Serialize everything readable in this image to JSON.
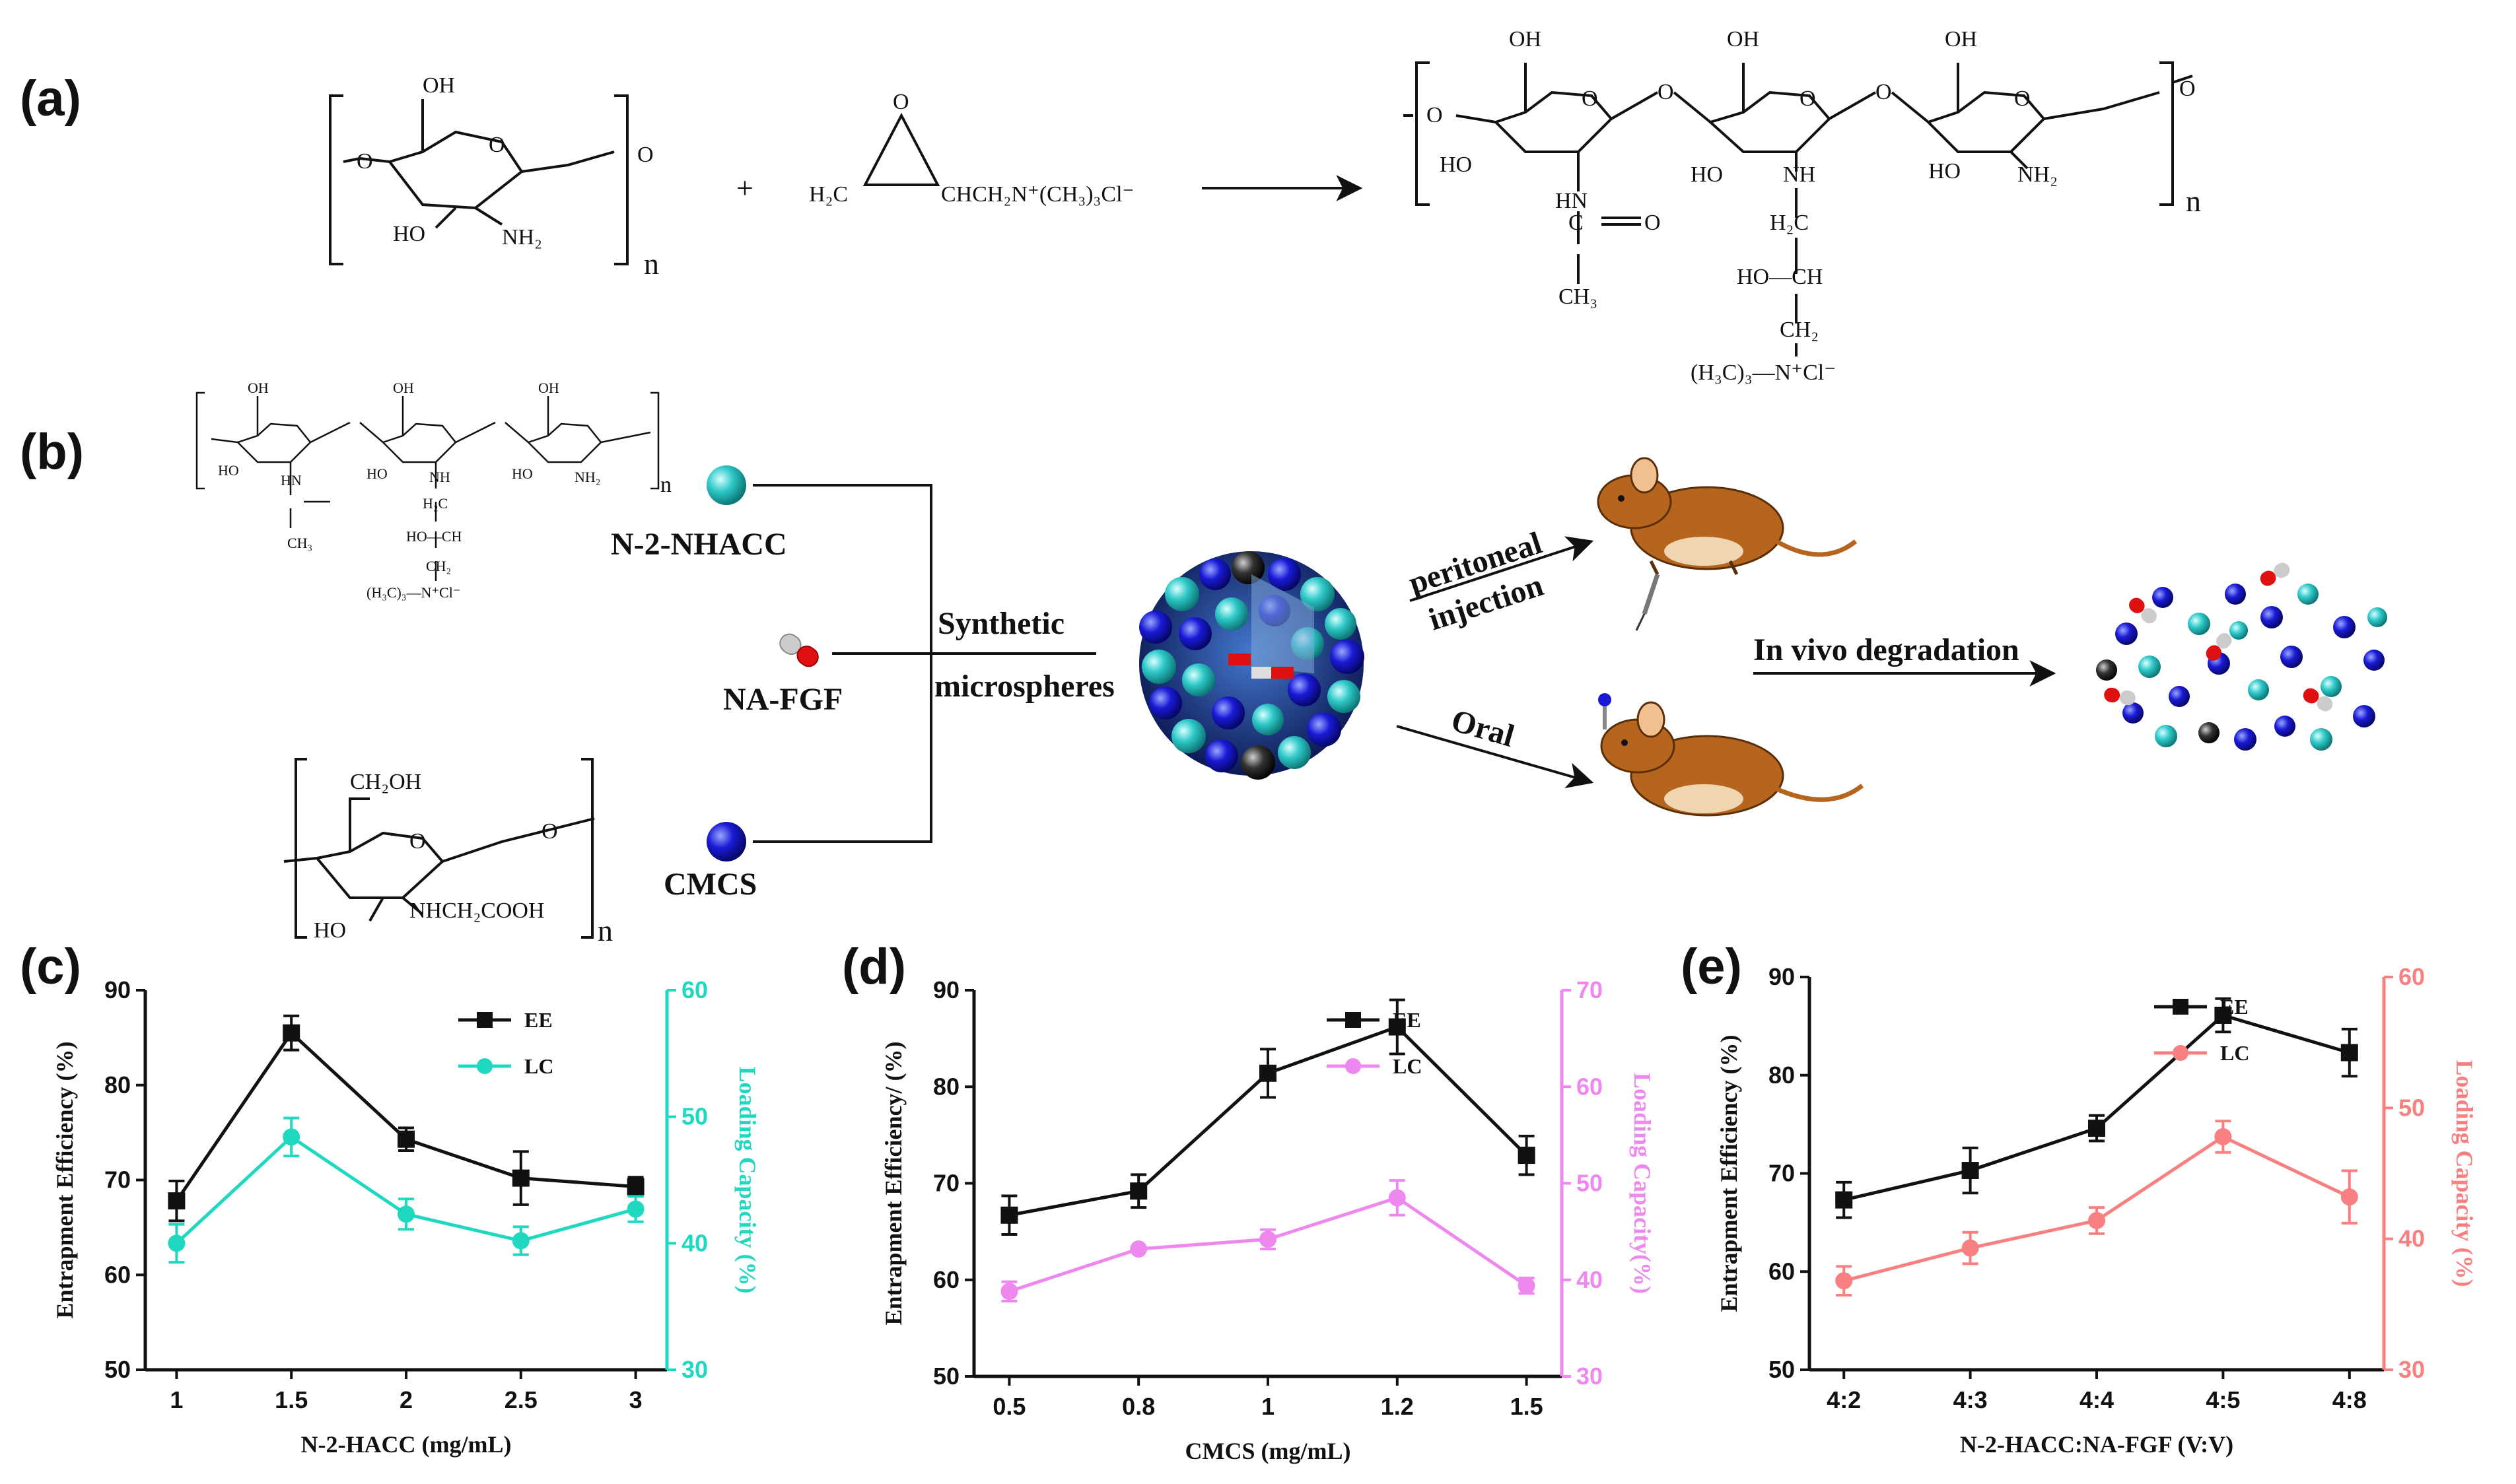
{
  "panels": {
    "a": "(a)",
    "b": "(b)",
    "c": "(c)",
    "d": "(d)",
    "e": "(e)"
  },
  "reaction_a": {
    "plus": "+",
    "reagent_left": "H₂C",
    "reagent_right": "CHCH₂N⁺(CH₃)₃Cl⁻",
    "n": "n",
    "chitosan": {
      "oh": "OH",
      "ho": "HO",
      "nh2": "NH₂",
      "o": "O"
    },
    "product": {
      "oh": "OH",
      "ho": "HO",
      "nh": "HN",
      "nh2": "NH₂",
      "o": "O",
      "nh_mid": "NH",
      "co": "C",
      "eq_o": "O",
      "ch3": "CH₃",
      "h2c": "H₂C",
      "hoch": "HO—CH",
      "ch2": "CH₂",
      "quat": "(H₃C)₃—N⁺Cl⁻"
    }
  },
  "scheme_b": {
    "nhacc_label": "N-2-NHACC",
    "nafgf_label": "NA-FGF",
    "cmcs_label": "CMCS",
    "synthetic": "Synthetic",
    "microspheres": "microspheres",
    "route1_a": "peritoneal",
    "route1_b": "injection",
    "route2": "Oral",
    "degradation": "In vivo degradation",
    "cmcs_struct": {
      "ch2oh": "CH₂OH",
      "ho": "HO",
      "nhch2cooh": "NHCH₂COOH",
      "o": "O",
      "n": "n"
    },
    "colors": {
      "cyan": "#2ec8c8",
      "blue": "#1a1ad6",
      "red": "#e01010",
      "grey": "#c8c8c8",
      "mouse": "#b5651d",
      "dark": "#222222"
    }
  },
  "chart_data": [
    {
      "id": "c",
      "type": "line",
      "x": [
        "1",
        "1.5",
        "2",
        "2.5",
        "3"
      ],
      "xlabel": "N-2-HACC (mg/mL)",
      "ylabel_left": "Entrapment Efficiency (%)",
      "ylabel_right": "Loading Capacity (%)",
      "ylim_left": [
        50,
        90
      ],
      "yticks_left": [
        "50",
        "60",
        "70",
        "80",
        "90"
      ],
      "ylim_right": [
        30,
        60
      ],
      "yticks_right": [
        "30",
        "40",
        "50",
        "60"
      ],
      "right_color": "#1fd8c0",
      "series": [
        {
          "name": "EE",
          "axis": "left",
          "color": "#111111",
          "marker": "square",
          "values": [
            67.8,
            85.5,
            74.3,
            70.2,
            69.3
          ],
          "errors": [
            2.1,
            1.8,
            1.2,
            2.8,
            1.0
          ]
        },
        {
          "name": "LC",
          "axis": "right",
          "color": "#1fd8c0",
          "marker": "circle",
          "values": [
            40.0,
            48.4,
            42.3,
            40.2,
            42.7
          ],
          "errors": [
            1.5,
            1.5,
            1.2,
            1.1,
            1.0
          ]
        }
      ]
    },
    {
      "id": "d",
      "type": "line",
      "x": [
        "0.5",
        "0.8",
        "1",
        "1.2",
        "1.5"
      ],
      "xlabel": "CMCS (mg/mL)",
      "ylabel_left": "Entrapment Efficiency/ (%)",
      "ylabel_right": "Loading Capacity(%)",
      "ylim_left": [
        50,
        90
      ],
      "yticks_left": [
        "50",
        "60",
        "70",
        "80",
        "90"
      ],
      "ylim_right": [
        30,
        70
      ],
      "yticks_right": [
        "30",
        "40",
        "50",
        "60",
        "70"
      ],
      "right_color": "#ee88ee",
      "series": [
        {
          "name": "EE",
          "axis": "left",
          "color": "#111111",
          "marker": "square",
          "values": [
            66.7,
            69.2,
            81.4,
            86.2,
            72.9
          ],
          "errors": [
            2.0,
            1.7,
            2.5,
            2.8,
            2.0
          ]
        },
        {
          "name": "LC",
          "axis": "right",
          "color": "#ee88ee",
          "marker": "circle",
          "values": [
            38.8,
            43.2,
            44.2,
            48.5,
            39.4
          ],
          "errors": [
            1.0,
            0.0,
            1.0,
            1.8,
            0.8
          ]
        }
      ]
    },
    {
      "id": "e",
      "type": "line",
      "x": [
        "4:2",
        "4:3",
        "4:4",
        "4:5",
        "4:8"
      ],
      "xlabel": "N-2-HACC:NA-FGF (V:V)",
      "ylabel_left": "Entrapment Efficiency (%)",
      "ylabel_right": "Loading Capacity (%)",
      "ylim_left": [
        50,
        90
      ],
      "yticks_left": [
        "50",
        "60",
        "70",
        "80",
        "90"
      ],
      "ylim_right": [
        30,
        60
      ],
      "yticks_right": [
        "30",
        "40",
        "50",
        "60"
      ],
      "right_color": "#f88080",
      "series": [
        {
          "name": "EE",
          "axis": "left",
          "color": "#111111",
          "marker": "square",
          "values": [
            67.3,
            70.3,
            74.6,
            86.1,
            82.3
          ],
          "errors": [
            1.8,
            2.3,
            1.3,
            1.7,
            2.4
          ]
        },
        {
          "name": "LC",
          "axis": "right",
          "color": "#f88080",
          "marker": "circle",
          "values": [
            36.8,
            39.3,
            41.4,
            47.8,
            43.2
          ],
          "errors": [
            1.1,
            1.2,
            1.0,
            1.2,
            2.0
          ]
        }
      ]
    }
  ]
}
